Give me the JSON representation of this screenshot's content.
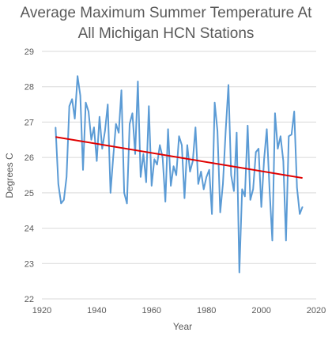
{
  "chart_data": {
    "type": "line",
    "title_lines": [
      "Average Maximum Summer Temperature At",
      "All Michigan HCN Stations"
    ],
    "xlabel": "Year",
    "ylabel": "Degrees C",
    "xlim": [
      1920,
      2020
    ],
    "ylim": [
      22,
      29
    ],
    "xticks": [
      1920,
      1940,
      1960,
      1980,
      2000,
      2020
    ],
    "yticks": [
      22,
      23,
      24,
      25,
      26,
      27,
      28,
      29
    ],
    "grid": "horizontal",
    "colors": {
      "series": "#5b9bd5",
      "trend": "#e00000",
      "grid": "#d9d9d9",
      "text": "#595959"
    },
    "series": [
      {
        "x": [
          1925,
          1926,
          1927,
          1928,
          1929,
          1930,
          1931,
          1932,
          1933,
          1934,
          1935,
          1936,
          1937,
          1938,
          1939,
          1940,
          1941,
          1942,
          1943,
          1944,
          1945,
          1946,
          1947,
          1948,
          1949,
          1950,
          1951,
          1952,
          1953,
          1954,
          1955,
          1956,
          1957,
          1958,
          1959,
          1960,
          1961,
          1962,
          1963,
          1964,
          1965,
          1966,
          1967,
          1968,
          1969,
          1970,
          1971,
          1972,
          1973,
          1974,
          1975,
          1976,
          1977,
          1978,
          1979,
          1980,
          1981,
          1982,
          1983,
          1984,
          1985,
          1986,
          1987,
          1988,
          1989,
          1990,
          1991,
          1992,
          1993,
          1994,
          1995,
          1996,
          1997,
          1998,
          1999,
          2000,
          2001,
          2002,
          2003,
          2004,
          2005,
          2006,
          2007,
          2008,
          2009,
          2010,
          2011,
          2012,
          2013,
          2014,
          2015
        ],
        "values": [
          26.85,
          25.25,
          24.7,
          24.8,
          25.45,
          27.45,
          27.65,
          27.1,
          28.3,
          27.75,
          25.65,
          27.55,
          27.3,
          26.5,
          26.85,
          25.9,
          27.15,
          26.25,
          26.75,
          27.5,
          25.0,
          26.0,
          26.95,
          26.7,
          27.9,
          25.0,
          24.7,
          26.95,
          27.25,
          26.1,
          28.15,
          25.45,
          26.1,
          25.3,
          27.45,
          25.2,
          25.95,
          25.8,
          26.35,
          26.0,
          24.75,
          26.8,
          25.2,
          25.75,
          25.5,
          26.6,
          26.35,
          24.85,
          26.35,
          25.6,
          25.9,
          26.85,
          25.25,
          25.6,
          25.1,
          25.45,
          25.65,
          24.4,
          27.55,
          26.75,
          24.45,
          25.25,
          26.75,
          28.05,
          25.5,
          25.05,
          26.7,
          22.75,
          25.1,
          24.9,
          26.9,
          24.8,
          25.1,
          26.15,
          26.25,
          24.6,
          25.95,
          26.8,
          25.1,
          23.65,
          27.25,
          26.25,
          26.6,
          25.9,
          23.65,
          26.6,
          26.65,
          27.3,
          25.15,
          24.4,
          24.6
        ]
      }
    ],
    "trend": {
      "x": [
        1925,
        2015
      ],
      "y": [
        26.58,
        25.42
      ]
    }
  }
}
